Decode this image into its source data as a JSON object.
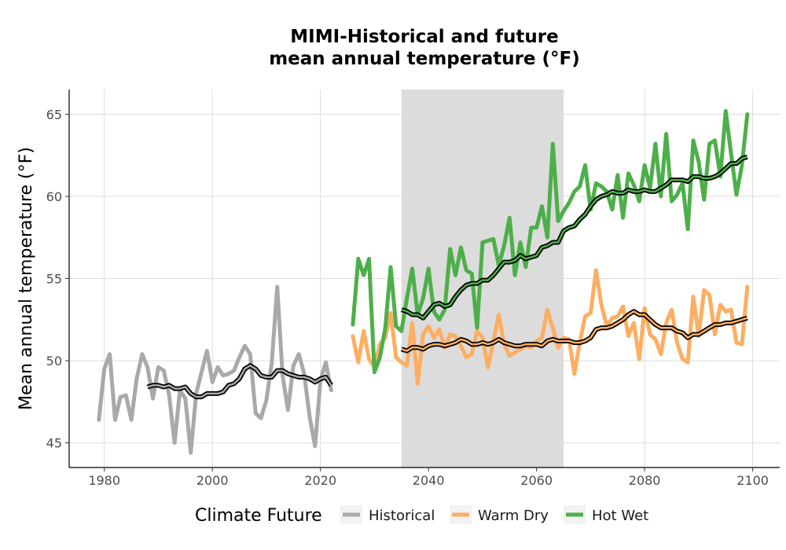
{
  "chart_data": {
    "type": "line",
    "title": "MIMI-Historical and future\nmean annual temperature (°F)",
    "xlabel": "",
    "ylabel": "Mean annual temperature (°F)",
    "xlim": [
      1973.5,
      2105
    ],
    "ylim": [
      43.5,
      66.5
    ],
    "x_ticks": [
      1980,
      2000,
      2020,
      2040,
      2060,
      2080,
      2100
    ],
    "y_ticks": [
      45,
      50,
      55,
      60,
      65
    ],
    "grid": true,
    "shaded_period": [
      2035,
      2065
    ],
    "legend": {
      "title": "Climate Future",
      "position": "bottom"
    },
    "series": [
      {
        "name": "Historical",
        "color": "#a9a9a9",
        "x": [
          1979,
          1980,
          1981,
          1982,
          1983,
          1984,
          1985,
          1986,
          1987,
          1988,
          1989,
          1990,
          1991,
          1992,
          1993,
          1994,
          1995,
          1996,
          1997,
          1998,
          1999,
          2000,
          2001,
          2002,
          2003,
          2004,
          2005,
          2006,
          2007,
          2008,
          2009,
          2010,
          2011,
          2012,
          2013,
          2014,
          2015,
          2016,
          2017,
          2018,
          2019,
          2020,
          2021,
          2022
        ],
        "values": [
          46.4,
          49.5,
          50.4,
          46.4,
          47.8,
          47.9,
          46.4,
          48.9,
          50.4,
          49.6,
          47.7,
          49.6,
          49.4,
          47.9,
          45.0,
          48.2,
          47.7,
          44.4,
          48.0,
          49.3,
          50.6,
          48.7,
          49.6,
          49.1,
          49.2,
          49.4,
          50.2,
          50.9,
          50.4,
          46.8,
          46.5,
          47.6,
          49.9,
          54.5,
          49.1,
          47.0,
          49.7,
          50.4,
          49.2,
          46.6,
          44.8,
          48.8,
          49.9,
          48.2
        ],
        "smooth_x": [
          1988,
          1989,
          1990,
          1991,
          1992,
          1993,
          1994,
          1995,
          1996,
          1997,
          1998,
          1999,
          2000,
          2001,
          2002,
          2003,
          2004,
          2005,
          2006,
          2007,
          2008,
          2009,
          2010,
          2011,
          2012,
          2013,
          2014,
          2015,
          2016,
          2017,
          2018,
          2019,
          2020,
          2021,
          2022
        ],
        "smooth": [
          48.4,
          48.5,
          48.5,
          48.4,
          48.5,
          48.3,
          48.3,
          48.4,
          48.0,
          47.8,
          47.8,
          48.0,
          48.0,
          48.0,
          48.1,
          48.5,
          48.6,
          48.9,
          49.5,
          49.7,
          49.5,
          49.1,
          49.0,
          49.0,
          49.4,
          49.4,
          49.2,
          49.1,
          49.0,
          49.0,
          48.9,
          48.7,
          48.9,
          49.0,
          48.5
        ]
      },
      {
        "name": "Warm Dry",
        "color": "#fdae61",
        "x": [
          2026,
          2027,
          2028,
          2029,
          2030,
          2031,
          2032,
          2033,
          2034,
          2035,
          2036,
          2037,
          2038,
          2039,
          2040,
          2041,
          2042,
          2043,
          2044,
          2045,
          2046,
          2047,
          2048,
          2049,
          2050,
          2051,
          2052,
          2053,
          2054,
          2055,
          2056,
          2057,
          2058,
          2059,
          2060,
          2061,
          2062,
          2063,
          2064,
          2065,
          2066,
          2067,
          2068,
          2069,
          2070,
          2071,
          2072,
          2073,
          2074,
          2075,
          2076,
          2077,
          2078,
          2079,
          2080,
          2081,
          2082,
          2083,
          2084,
          2085,
          2086,
          2087,
          2088,
          2089,
          2090,
          2091,
          2092,
          2093,
          2094,
          2095,
          2096,
          2097,
          2098,
          2099
        ],
        "values": [
          51.5,
          49.9,
          51.8,
          50.1,
          49.6,
          51.0,
          51.4,
          52.9,
          50.2,
          49.9,
          49.7,
          52.3,
          48.6,
          51.6,
          52.1,
          51.4,
          51.9,
          50.8,
          51.6,
          51.5,
          50.9,
          50.2,
          50.4,
          51.8,
          51.4,
          49.6,
          51.2,
          52.8,
          51.0,
          50.3,
          50.5,
          50.7,
          50.9,
          50.8,
          51.2,
          51.4,
          53.1,
          52.0,
          50.8,
          51.4,
          51.3,
          49.2,
          51.1,
          52.7,
          52.9,
          55.5,
          53.4,
          52.1,
          52.6,
          52.7,
          53.3,
          51.5,
          52.3,
          50.1,
          53.2,
          51.6,
          51.3,
          50.4,
          52.3,
          53.1,
          51.1,
          50.1,
          49.9,
          53.9,
          51.5,
          54.3,
          54.0,
          51.6,
          53.4,
          53.0,
          53.1,
          51.1,
          51.0,
          54.5
        ],
        "smooth_x": [
          2035,
          2036,
          2037,
          2038,
          2039,
          2040,
          2041,
          2042,
          2043,
          2044,
          2045,
          2046,
          2047,
          2048,
          2049,
          2050,
          2051,
          2052,
          2053,
          2054,
          2055,
          2056,
          2057,
          2058,
          2059,
          2060,
          2061,
          2062,
          2063,
          2064,
          2065,
          2066,
          2067,
          2068,
          2069,
          2070,
          2071,
          2072,
          2073,
          2074,
          2075,
          2076,
          2077,
          2078,
          2079,
          2080,
          2081,
          2082,
          2083,
          2084,
          2085,
          2086,
          2087,
          2088,
          2089,
          2090,
          2091,
          2092,
          2093,
          2094,
          2095,
          2096,
          2097,
          2098,
          2099
        ],
        "smooth": [
          50.7,
          50.6,
          50.8,
          50.8,
          50.7,
          50.9,
          51.0,
          51.0,
          50.9,
          51.0,
          51.1,
          51.3,
          51.2,
          51.0,
          51.0,
          51.1,
          51.0,
          51.1,
          51.3,
          51.1,
          51.0,
          50.9,
          50.9,
          51.0,
          51.0,
          51.0,
          50.9,
          51.2,
          51.3,
          51.2,
          51.2,
          51.2,
          51.1,
          51.1,
          51.2,
          51.4,
          51.9,
          52.0,
          52.0,
          52.1,
          52.3,
          52.5,
          52.8,
          53.0,
          52.8,
          52.8,
          52.5,
          52.2,
          52.0,
          52.0,
          52.0,
          51.8,
          51.7,
          51.4,
          51.6,
          51.6,
          51.8,
          52.0,
          52.2,
          52.2,
          52.3,
          52.3,
          52.4,
          52.5,
          52.6
        ]
      },
      {
        "name": "Hot Wet",
        "color": "#4daf4a",
        "x": [
          2026,
          2027,
          2028,
          2029,
          2030,
          2031,
          2032,
          2033,
          2034,
          2035,
          2036,
          2037,
          2038,
          2039,
          2040,
          2041,
          2042,
          2043,
          2044,
          2045,
          2046,
          2047,
          2048,
          2049,
          2050,
          2051,
          2052,
          2053,
          2054,
          2055,
          2056,
          2057,
          2058,
          2059,
          2060,
          2061,
          2062,
          2063,
          2064,
          2065,
          2066,
          2067,
          2068,
          2069,
          2070,
          2071,
          2072,
          2073,
          2074,
          2075,
          2076,
          2077,
          2078,
          2079,
          2080,
          2081,
          2082,
          2083,
          2084,
          2085,
          2086,
          2087,
          2088,
          2089,
          2090,
          2091,
          2092,
          2093,
          2094,
          2095,
          2096,
          2097,
          2098,
          2099
        ],
        "values": [
          52.2,
          56.2,
          55.2,
          56.2,
          49.3,
          50.2,
          52.0,
          55.7,
          52.1,
          51.8,
          53.8,
          55.6,
          52.8,
          53.8,
          55.6,
          53.0,
          52.5,
          53.1,
          56.8,
          55.2,
          56.9,
          55.5,
          55.3,
          52.0,
          57.2,
          57.3,
          57.4,
          55.8,
          57.0,
          58.7,
          55.2,
          57.2,
          55.7,
          58.1,
          58.1,
          59.4,
          57.5,
          63.2,
          58.5,
          59.1,
          59.6,
          60.3,
          60.6,
          61.9,
          59.2,
          60.8,
          60.6,
          60.3,
          59.2,
          61.3,
          58.7,
          61.4,
          60.7,
          59.7,
          61.9,
          60.5,
          63.2,
          60.0,
          63.8,
          59.7,
          60.1,
          60.8,
          58.0,
          63.4,
          62.1,
          59.8,
          63.2,
          63.4,
          61.2,
          65.2,
          62.6,
          60.1,
          61.9,
          65.0
        ],
        "smooth_x": [
          2035,
          2036,
          2037,
          2038,
          2039,
          2040,
          2041,
          2042,
          2043,
          2044,
          2045,
          2046,
          2047,
          2048,
          2049,
          2050,
          2051,
          2052,
          2053,
          2054,
          2055,
          2056,
          2057,
          2058,
          2059,
          2060,
          2061,
          2062,
          2063,
          2064,
          2065,
          2066,
          2067,
          2068,
          2069,
          2070,
          2071,
          2072,
          2073,
          2074,
          2075,
          2076,
          2077,
          2078,
          2079,
          2080,
          2081,
          2082,
          2083,
          2084,
          2085,
          2086,
          2087,
          2088,
          2089,
          2090,
          2091,
          2092,
          2093,
          2094,
          2095,
          2096,
          2097,
          2098,
          2099
        ],
        "smooth": [
          53.1,
          53.0,
          52.8,
          52.8,
          52.6,
          53.0,
          53.4,
          53.5,
          53.3,
          53.4,
          53.9,
          54.3,
          54.6,
          54.7,
          54.7,
          54.9,
          54.9,
          55.2,
          55.6,
          56.0,
          56.0,
          56.1,
          56.4,
          56.2,
          56.3,
          56.4,
          56.9,
          57.0,
          57.2,
          57.2,
          57.9,
          58.1,
          58.2,
          58.6,
          58.9,
          59.4,
          59.8,
          60.0,
          60.1,
          60.3,
          60.2,
          60.2,
          60.4,
          60.3,
          60.3,
          60.4,
          60.3,
          60.3,
          60.5,
          60.7,
          61.0,
          61.0,
          61.0,
          60.9,
          61.2,
          61.2,
          61.1,
          61.1,
          61.2,
          61.4,
          61.7,
          62.0,
          62.0,
          62.3,
          62.4
        ]
      }
    ]
  }
}
